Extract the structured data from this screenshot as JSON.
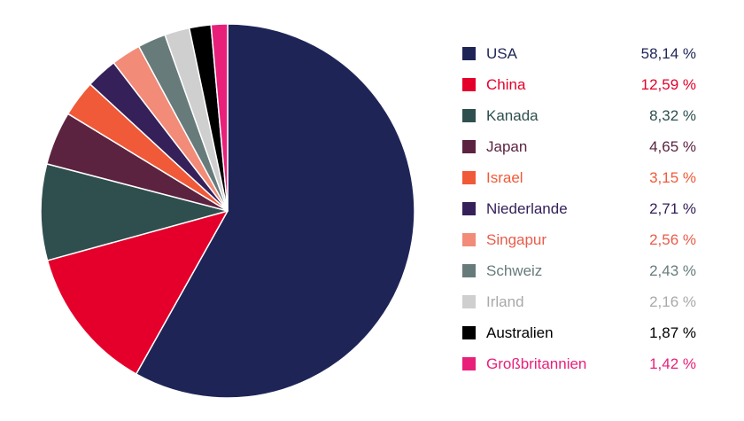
{
  "chart_data": {
    "type": "pie",
    "value_suffix": " %",
    "slices": [
      {
        "label": "USA",
        "value": 58.14,
        "display": "58,14 %",
        "color": "#1e2556",
        "text_color": "#1e2556"
      },
      {
        "label": "China",
        "value": 12.59,
        "display": "12,59 %",
        "color": "#e4002b",
        "text_color": "#e4002b"
      },
      {
        "label": "Kanada",
        "value": 8.32,
        "display": "8,32 %",
        "color": "#2f4f4f",
        "text_color": "#2f4f4f"
      },
      {
        "label": "Japan",
        "value": 4.65,
        "display": "4,65 %",
        "color": "#5c2340",
        "text_color": "#5c2340"
      },
      {
        "label": "Israel",
        "value": 3.15,
        "display": "3,15 %",
        "color": "#f05a38",
        "text_color": "#f05a38"
      },
      {
        "label": "Niederlande",
        "value": 2.71,
        "display": "2,71 %",
        "color": "#35205a",
        "text_color": "#35205a"
      },
      {
        "label": "Singapur",
        "value": 2.56,
        "display": "2,56 %",
        "color": "#f28b78",
        "text_color": "#e85c4a"
      },
      {
        "label": "Schweiz",
        "value": 2.43,
        "display": "2,43 %",
        "color": "#687b7b",
        "text_color": "#687b7b"
      },
      {
        "label": "Irland",
        "value": 2.16,
        "display": "2,16 %",
        "color": "#cfcfcf",
        "text_color": "#a9a9a9"
      },
      {
        "label": "Australien",
        "value": 1.87,
        "display": "1,87 %",
        "color": "#000000",
        "text_color": "#000000"
      },
      {
        "label": "Großbritannien",
        "value": 1.42,
        "display": "1,42 %",
        "color": "#e8207a",
        "text_color": "#e8207a"
      }
    ],
    "legend_position": "right"
  }
}
